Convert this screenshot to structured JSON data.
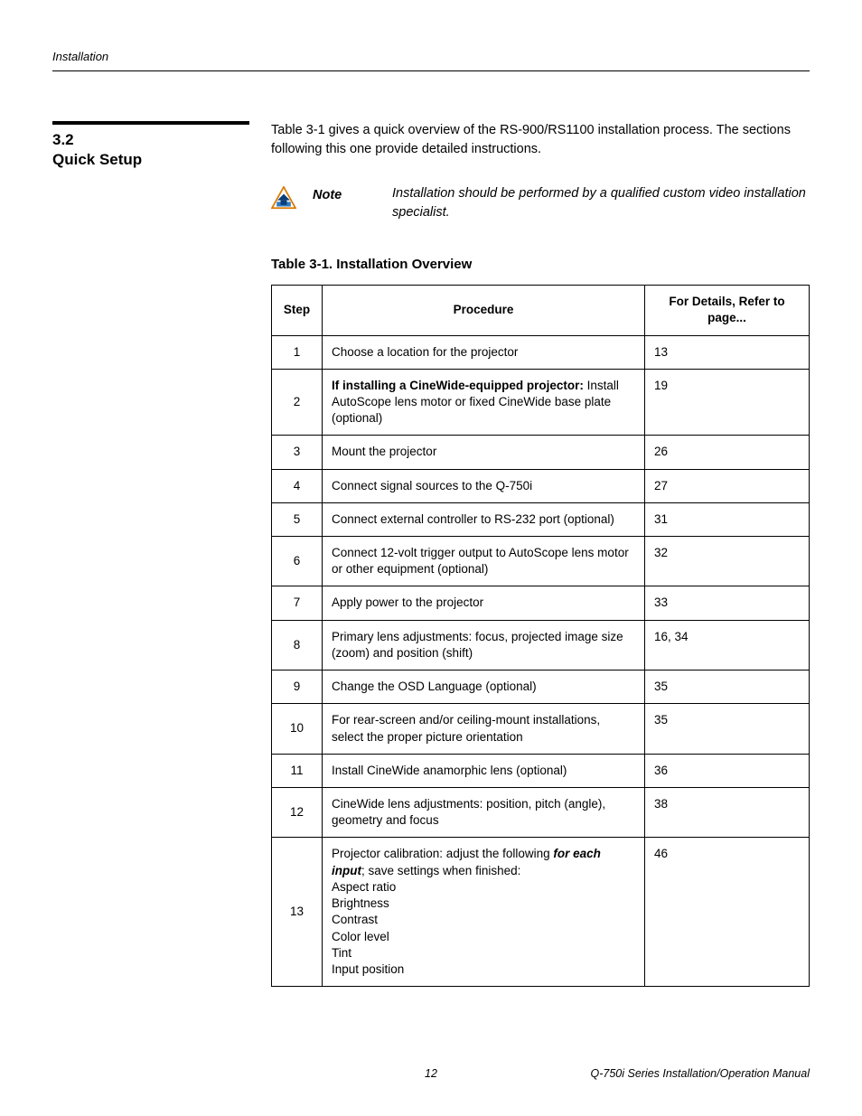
{
  "header": {
    "running": "Installation"
  },
  "section": {
    "number": "3.2",
    "title": "Quick Setup"
  },
  "intro": "Table 3-1 gives a quick overview of the RS-900/RS1100 installation process. The sections following this one provide detailed instructions.",
  "note": {
    "label": "Note",
    "text": "Installation should be performed by a qualified custom video installation specialist.",
    "icon_colors": {
      "triangle_stroke": "#d97a00",
      "triangle_fill": "#ffffff",
      "band": "#2e7cc0",
      "house": "#0a3e7a"
    }
  },
  "table": {
    "caption": "Table 3-1. Installation Overview",
    "columns": [
      "Step",
      "Procedure",
      "For Details, Refer to page..."
    ],
    "rows": [
      {
        "step": "1",
        "procedure_plain": "Choose a location for the projector",
        "page": "13"
      },
      {
        "step": "2",
        "procedure_bold": "If installing a CineWide-equipped projector:",
        "procedure_rest": " Install AutoScope lens motor or fixed CineWide base plate (optional)",
        "page": "19"
      },
      {
        "step": "3",
        "procedure_plain": "Mount the projector",
        "page": "26"
      },
      {
        "step": "4",
        "procedure_plain": "Connect signal sources to the Q-750i",
        "page": "27"
      },
      {
        "step": "5",
        "procedure_plain": "Connect external controller to RS-232 port (optional)",
        "page": "31"
      },
      {
        "step": "6",
        "procedure_plain": "Connect 12-volt trigger output to AutoScope lens motor or other equipment (optional)",
        "page": "32"
      },
      {
        "step": "7",
        "procedure_plain": "Apply power to the projector",
        "page": "33"
      },
      {
        "step": "8",
        "procedure_plain": "Primary lens adjustments: focus, projected image size (zoom) and position (shift)",
        "page": "16, 34"
      },
      {
        "step": "9",
        "procedure_plain": "Change the OSD Language (optional)",
        "page": "35"
      },
      {
        "step": "10",
        "procedure_plain": "For rear-screen and/or ceiling-mount installations, select the proper picture orientation",
        "page": "35"
      },
      {
        "step": "11",
        "procedure_plain": "Install CineWide anamorphic lens (optional)",
        "page": "36"
      },
      {
        "step": "12",
        "procedure_plain": "CineWide lens adjustments: position, pitch (angle), geometry and focus",
        "page": "38"
      },
      {
        "step": "13",
        "procedure_calib_lead_pre": "Projector calibration: adjust the following ",
        "procedure_calib_lead_bolditalic": "for each input",
        "procedure_calib_lead_post": "; save settings when finished:",
        "procedure_calib_items": [
          "Aspect ratio",
          "Brightness",
          "Contrast",
          "Color level",
          "Tint",
          "Input position"
        ],
        "page": "46"
      }
    ]
  },
  "footer": {
    "page_number": "12",
    "doc_title": "Q-750i Series Installation/Operation Manual"
  }
}
